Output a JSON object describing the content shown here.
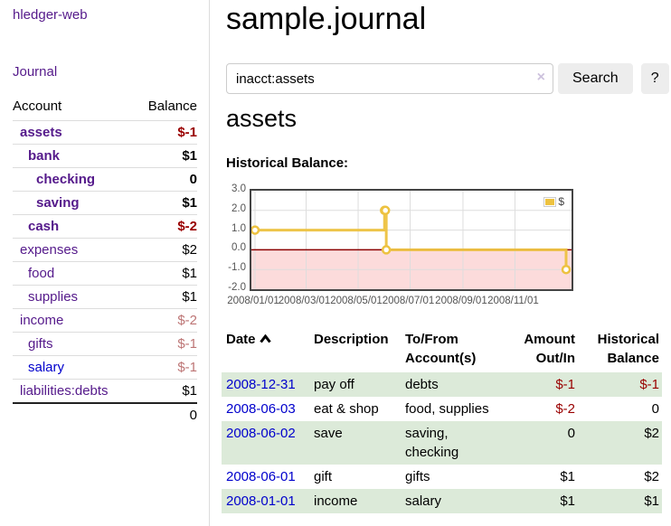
{
  "app": {
    "title": "hledger-web"
  },
  "sidebar": {
    "journal_link": "Journal",
    "accounts": {
      "header_account": "Account",
      "header_balance": "Balance",
      "rows": [
        {
          "name": "assets",
          "indent": 1,
          "bold": true,
          "color": "purple",
          "balance": "$-1",
          "balance_class": "neg-strong"
        },
        {
          "name": "bank",
          "indent": 2,
          "bold": true,
          "color": "purple",
          "balance": "$1",
          "balance_class": ""
        },
        {
          "name": "checking",
          "indent": 3,
          "bold": true,
          "color": "purple",
          "balance": "0",
          "balance_class": ""
        },
        {
          "name": "saving",
          "indent": 3,
          "bold": true,
          "color": "purple",
          "balance": "$1",
          "balance_class": ""
        },
        {
          "name": "cash",
          "indent": 2,
          "bold": true,
          "color": "purple",
          "balance": "$-2",
          "balance_class": "neg-strong"
        },
        {
          "name": "expenses",
          "indent": 1,
          "bold": false,
          "color": "purple",
          "balance": "$2",
          "balance_class": ""
        },
        {
          "name": "food",
          "indent": 2,
          "bold": false,
          "color": "purple",
          "balance": "$1",
          "balance_class": ""
        },
        {
          "name": "supplies",
          "indent": 2,
          "bold": false,
          "color": "purple",
          "balance": "$1",
          "balance_class": ""
        },
        {
          "name": "income",
          "indent": 1,
          "bold": false,
          "color": "purple",
          "balance": "$-2",
          "balance_class": "neg-soft"
        },
        {
          "name": "gifts",
          "indent": 2,
          "bold": false,
          "color": "purple",
          "balance": "$-1",
          "balance_class": "neg-soft"
        },
        {
          "name": "salary",
          "indent": 2,
          "bold": false,
          "color": "blue",
          "balance": "$-1",
          "balance_class": "neg-soft"
        },
        {
          "name": "liabilities:debts",
          "indent": 1,
          "bold": false,
          "color": "purple",
          "balance": "$1",
          "balance_class": ""
        }
      ],
      "total": "0"
    }
  },
  "main": {
    "title": "sample.journal",
    "search": {
      "value": "inacct:assets",
      "clear_icon": "×",
      "search_button": "Search",
      "help_button": "?"
    },
    "account_heading": "assets",
    "chart_heading": "Historical Balance:",
    "transactions": {
      "headers": {
        "date": "Date",
        "description": "Description",
        "account": "To/From Account(s)",
        "amount": "Amount Out/In",
        "balance": "Historical Balance"
      },
      "rows": [
        {
          "date": "2008-12-31",
          "description": "pay off",
          "account": "debts",
          "amount": "$-1",
          "amount_class": "neg-strong",
          "balance": "$-1",
          "balance_class": "neg-strong",
          "green": true
        },
        {
          "date": "2008-06-03",
          "description": "eat & shop",
          "account": "food, supplies",
          "amount": "$-2",
          "amount_class": "neg-strong",
          "balance": "0",
          "balance_class": "",
          "green": false
        },
        {
          "date": "2008-06-02",
          "description": "save",
          "account": "saving, checking",
          "amount": "0",
          "amount_class": "",
          "balance": "$2",
          "balance_class": "",
          "green": true
        },
        {
          "date": "2008-06-01",
          "description": "gift",
          "account": "gifts",
          "amount": "$1",
          "amount_class": "",
          "balance": "$2",
          "balance_class": "",
          "green": false
        },
        {
          "date": "2008-01-01",
          "description": "income",
          "account": "salary",
          "amount": "$1",
          "amount_class": "",
          "balance": "$1",
          "balance_class": "",
          "green": true
        }
      ]
    }
  },
  "chart_data": {
    "type": "line",
    "step": true,
    "title": "Historical Balance:",
    "series": [
      {
        "name": "$",
        "color": "#edc240",
        "points": [
          [
            "2008-01-01",
            1
          ],
          [
            "2008-06-01",
            2
          ],
          [
            "2008-06-02",
            2
          ],
          [
            "2008-06-03",
            0
          ],
          [
            "2008-12-31",
            -1
          ]
        ]
      }
    ],
    "xlim": [
      "2008-01-01",
      "2008-12-31"
    ],
    "ylim": [
      -2,
      3
    ],
    "yticks": [
      "3.0",
      "2.0",
      "1.0",
      "0.0",
      "-1.0",
      "-2.0"
    ],
    "ytick_values": [
      3,
      2,
      1,
      0,
      -1,
      -2
    ],
    "xticks": [
      "2008/01/01",
      "2008/03/01",
      "2008/05/01",
      "2008/07/01",
      "2008/09/01",
      "2008/11/01"
    ],
    "legend_position": "top-right",
    "grid": true,
    "gridline_color": "#dddddd",
    "negative_fill": "#fcdbdb",
    "zero_line_color": "#8b0000",
    "marker_fill": "#ffffff"
  }
}
